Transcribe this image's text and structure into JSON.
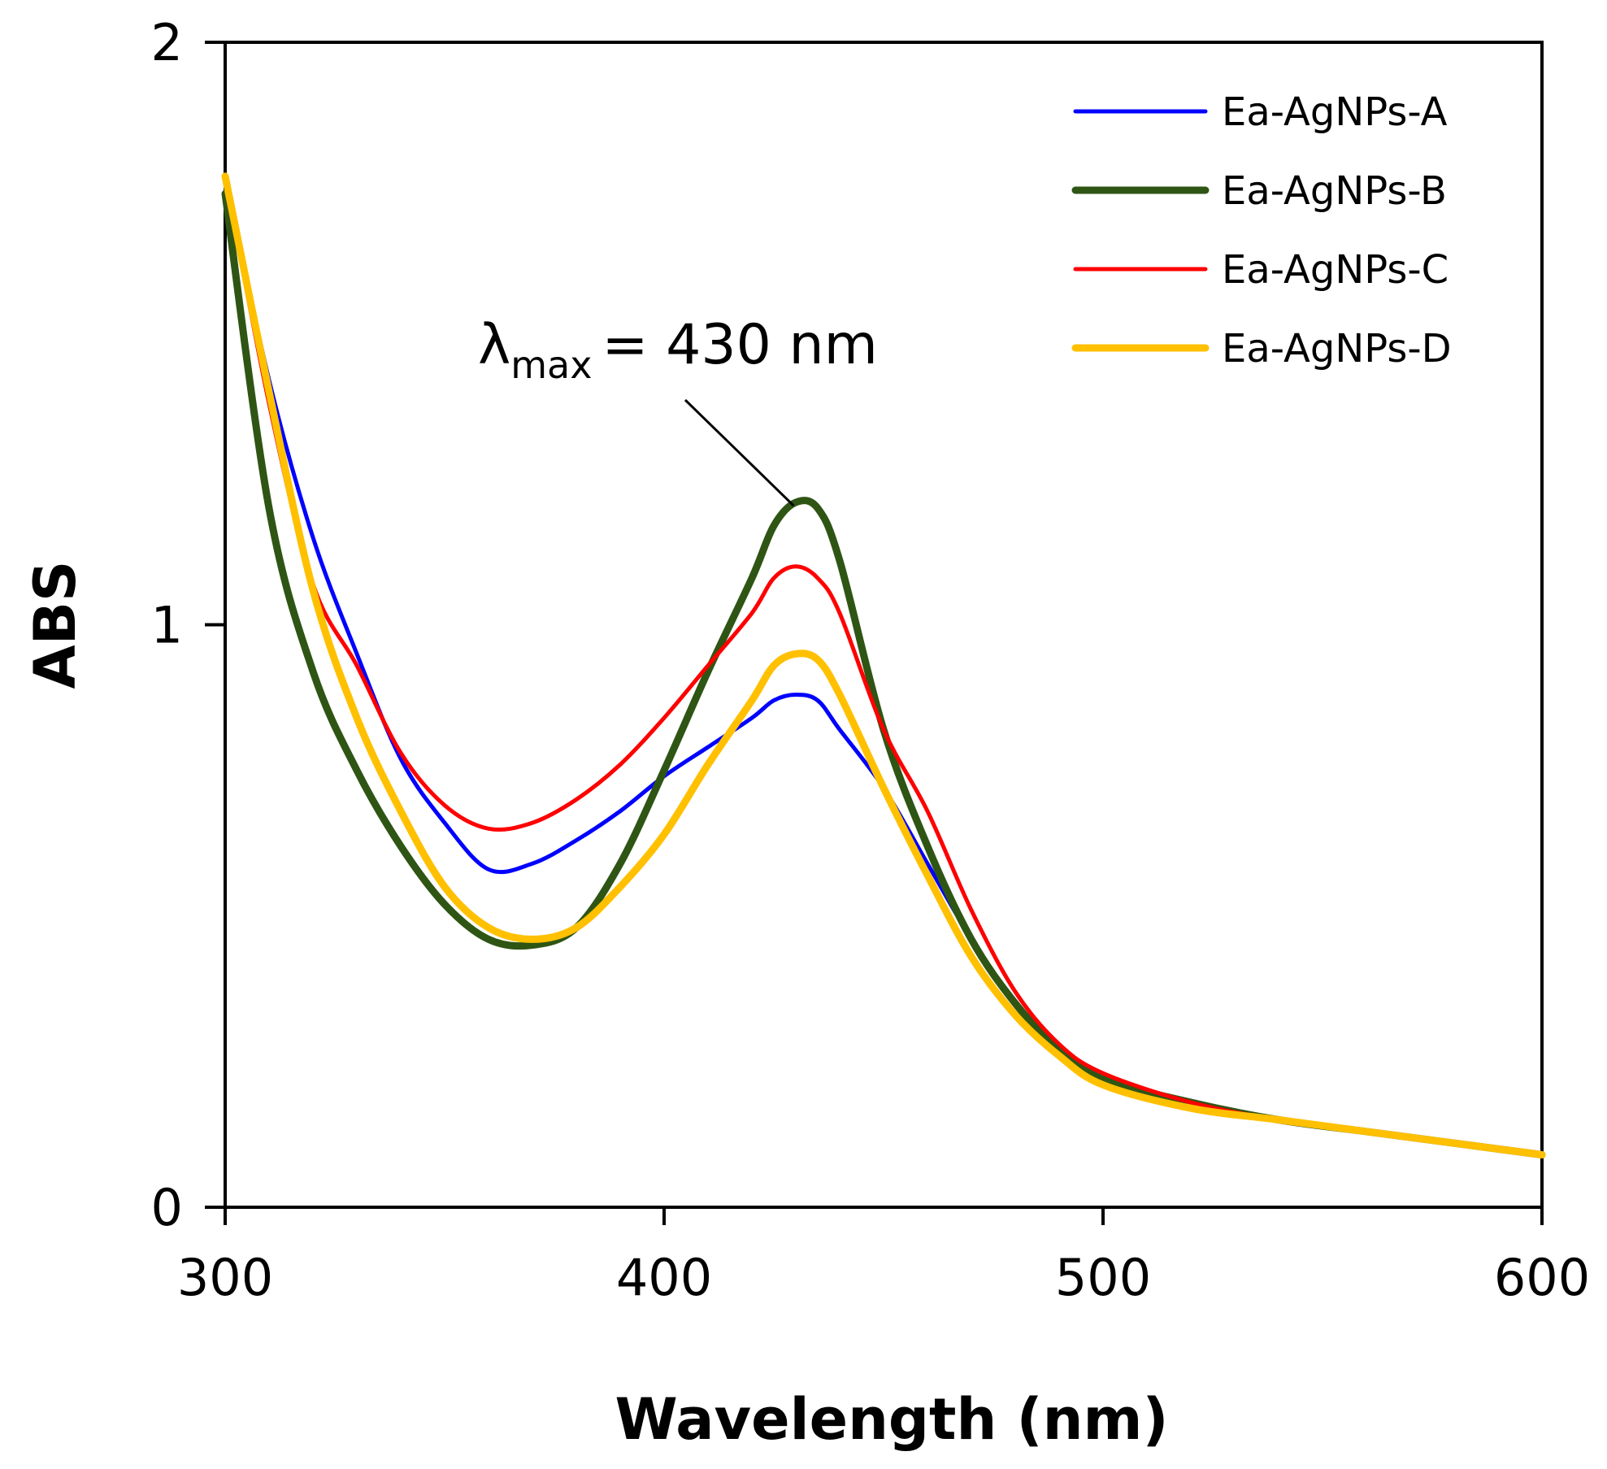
{
  "chart_data": {
    "type": "line",
    "title": "",
    "xlabel": "Wavelength (nm)",
    "ylabel": "ABS",
    "xlim": [
      300,
      600
    ],
    "ylim": [
      0,
      2
    ],
    "xticks": [
      300,
      400,
      500,
      600
    ],
    "yticks": [
      0,
      1,
      2
    ],
    "grid": false,
    "legend_position": "top-right",
    "annotation": {
      "symbol": "λ",
      "subscript": "max",
      "text": "= 430 nm",
      "points_to": [
        431,
        1.21
      ]
    },
    "series": [
      {
        "name": "Ea-AgNPs-A",
        "color": "#0000FF",
        "line_width": "thin",
        "x": [
          300,
          310,
          320,
          330,
          340,
          350,
          360,
          370,
          380,
          390,
          400,
          410,
          420,
          425,
          430,
          435,
          440,
          450,
          460,
          470,
          480,
          490,
          500,
          520,
          540,
          560,
          580,
          600
        ],
        "y": [
          1.77,
          1.42,
          1.15,
          0.95,
          0.77,
          0.66,
          0.58,
          0.59,
          0.63,
          0.68,
          0.74,
          0.79,
          0.84,
          0.87,
          0.88,
          0.87,
          0.82,
          0.72,
          0.59,
          0.46,
          0.35,
          0.27,
          0.22,
          0.18,
          0.15,
          0.13,
          0.11,
          0.09
        ]
      },
      {
        "name": "Ea-AgNPs-B",
        "color": "#2F5515",
        "line_width": "thick",
        "x": [
          300,
          310,
          320,
          330,
          340,
          350,
          360,
          370,
          380,
          390,
          400,
          410,
          420,
          425,
          430,
          435,
          440,
          450,
          460,
          470,
          480,
          490,
          500,
          520,
          540,
          560,
          580,
          600
        ],
        "y": [
          1.74,
          1.2,
          0.92,
          0.75,
          0.62,
          0.52,
          0.46,
          0.45,
          0.48,
          0.59,
          0.75,
          0.92,
          1.08,
          1.17,
          1.21,
          1.2,
          1.11,
          0.82,
          0.62,
          0.46,
          0.35,
          0.27,
          0.22,
          0.18,
          0.15,
          0.13,
          0.11,
          0.09
        ]
      },
      {
        "name": "Ea-AgNPs-C",
        "color": "#FF0000",
        "line_width": "thin",
        "x": [
          300,
          310,
          320,
          330,
          340,
          350,
          360,
          370,
          380,
          390,
          400,
          410,
          420,
          425,
          430,
          435,
          440,
          450,
          460,
          470,
          480,
          490,
          500,
          520,
          540,
          560,
          580,
          600
        ],
        "y": [
          1.77,
          1.38,
          1.07,
          0.93,
          0.78,
          0.69,
          0.65,
          0.66,
          0.7,
          0.76,
          0.84,
          0.93,
          1.02,
          1.08,
          1.1,
          1.08,
          1.02,
          0.82,
          0.68,
          0.51,
          0.37,
          0.28,
          0.23,
          0.18,
          0.15,
          0.13,
          0.11,
          0.09
        ]
      },
      {
        "name": "Ea-AgNPs-D",
        "color": "#FFC000",
        "line_width": "thick",
        "x": [
          300,
          310,
          320,
          330,
          340,
          350,
          360,
          370,
          380,
          390,
          400,
          410,
          420,
          425,
          430,
          435,
          440,
          450,
          460,
          470,
          480,
          490,
          500,
          520,
          540,
          560,
          580,
          600
        ],
        "y": [
          1.77,
          1.4,
          1.06,
          0.84,
          0.68,
          0.55,
          0.48,
          0.46,
          0.48,
          0.55,
          0.64,
          0.76,
          0.87,
          0.93,
          0.95,
          0.94,
          0.88,
          0.72,
          0.57,
          0.43,
          0.33,
          0.26,
          0.21,
          0.17,
          0.15,
          0.13,
          0.11,
          0.09
        ]
      }
    ]
  }
}
